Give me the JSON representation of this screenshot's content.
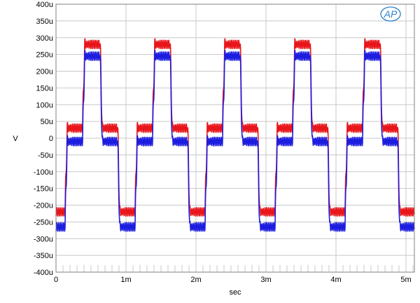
{
  "chart_data": {
    "type": "line",
    "title": "",
    "xlabel": "sec",
    "ylabel": "V",
    "xlim": [
      0,
      0.00512
    ],
    "ylim": [
      -0.0004,
      0.0004
    ],
    "x_ticks": [
      {
        "value": 0,
        "label": "0"
      },
      {
        "value": 0.001,
        "label": "1m"
      },
      {
        "value": 0.002,
        "label": "2m"
      },
      {
        "value": 0.003,
        "label": "3m"
      },
      {
        "value": 0.004,
        "label": "4m"
      },
      {
        "value": 0.005,
        "label": "5m"
      }
    ],
    "y_ticks": [
      {
        "value": 0.0004,
        "label": "400u"
      },
      {
        "value": 0.00035,
        "label": "350u"
      },
      {
        "value": 0.0003,
        "label": "300u"
      },
      {
        "value": 0.00025,
        "label": "250u"
      },
      {
        "value": 0.0002,
        "label": "200u"
      },
      {
        "value": 0.00015,
        "label": "150u"
      },
      {
        "value": 0.0001,
        "label": "100u"
      },
      {
        "value": 5e-05,
        "label": "50u"
      },
      {
        "value": 0,
        "label": "0"
      },
      {
        "value": -5e-05,
        "label": "-50u"
      },
      {
        "value": -0.0001,
        "label": "-100u"
      },
      {
        "value": -0.00015,
        "label": "-150u"
      },
      {
        "value": -0.0002,
        "label": "-200u"
      },
      {
        "value": -0.00025,
        "label": "-250u"
      },
      {
        "value": -0.0003,
        "label": "-300u"
      },
      {
        "value": -0.00035,
        "label": "-350u"
      },
      {
        "value": -0.0004,
        "label": "-400u"
      }
    ],
    "grid": true,
    "waveform": {
      "period": 0.001,
      "phase": 0.00013,
      "rise_time": 3e-05,
      "levels": [
        0.0,
        1.0,
        0.0,
        -1.0
      ],
      "ringing_frequency": 33000,
      "ringing_amplitude": 0.13,
      "ringing_decay": 3e-05,
      "ripple_frequency": 40000,
      "ripple_amplitude": 0.05
    },
    "series": [
      {
        "color": "#e8161b",
        "offset": 3e-05,
        "amplitude": 0.00025
      },
      {
        "color": "#1d1de0",
        "offset": -1e-05,
        "amplitude": 0.000255
      }
    ]
  },
  "logo": {
    "text": "AP",
    "color": "#2a7fc9"
  }
}
